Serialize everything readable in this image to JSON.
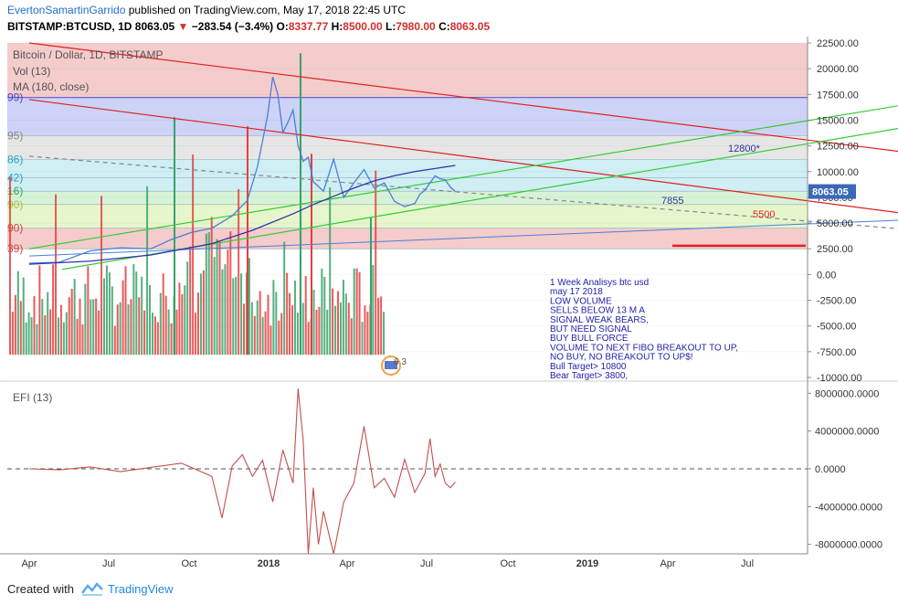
{
  "header": {
    "author": "EvertonSamartinGarrido",
    "published": " published on TradingView.com, May 17, 2018 22:45 UTC",
    "symbol": "BITSTAMP:BTCUSD, 1D",
    "price": "8063.05",
    "change": "−283.54 (−3.4%)",
    "o_label": "O:",
    "o_val": "8337.77",
    "h_label": "H:",
    "h_val": "8500.00",
    "l_label": "L:",
    "l_val": "7980.00",
    "c_label": "C:",
    "c_val": "8063.05"
  },
  "legend": {
    "title": "Bitcoin / Dollar, 1D, BITSTAMP",
    "vol": "Vol (13)",
    "ma": "MA (180, close)",
    "efi": "EFI (13)"
  },
  "fib_labels": [
    "99)",
    "95)",
    "86)",
    "42)",
    "16)",
    "90)",
    "90)",
    "39)"
  ],
  "annotations": {
    "l12800": "12800*",
    "l7855": "7855",
    "l5500": "5500",
    "counter": "6 3",
    "note": [
      "1 Week Analisys btc usd",
      "may 17 2018",
      "LOW VOLUME",
      "SELLS BELOW 13 M A",
      "SIGNAL WEAK BEARS,",
      "BUT NEED SIGNAL",
      " BUY BULL FORCE",
      "VOLUME TO NEXT FIBO BREAKOUT TO UP,",
      " NO BUY,  NO BREAKOUT TO UP$!",
      "Bull Target> 10800",
      " Bear Target> 3800,"
    ]
  },
  "price_badge": "8063.05",
  "colors": {
    "band_red": "#f4cccc",
    "band_blue": "#cdd3f7",
    "band_grey": "#e6e6e6",
    "band_cyan": "#cfeff5",
    "band_green": "#d7f3d7",
    "band_lgreen": "#e6f6cc",
    "price_line": "#4a7fd6",
    "ma_line": "#3333aa",
    "vol_up": "#38a169",
    "vol_down": "#e53e3e",
    "efi_line": "#c0504d",
    "trend_red": "#e02020",
    "trend_green": "#33cc33"
  },
  "chart_data": {
    "type": "line",
    "title": "Bitcoin / Dollar, 1D, BITSTAMP",
    "price_axis": {
      "ticks": [
        "22500.00",
        "20000.00",
        "17500.00",
        "15000.00",
        "12500.00",
        "10000.00",
        "7500.00",
        "5000.00",
        "2500.00",
        "0.00",
        "-2500.00",
        "-5000.00",
        "-7500.00",
        "-10000.00"
      ],
      "ylim": [
        -10000,
        22500
      ]
    },
    "efi_axis": {
      "ticks": [
        "8000000.0000",
        "4000000.0000",
        "0.0000",
        "-4000000.0000",
        "-8000000.0000"
      ],
      "ylim": [
        -9000000,
        9000000
      ]
    },
    "x_ticks": [
      "Apr",
      "Jul",
      "Oct",
      "2018",
      "Apr",
      "Jul",
      "Oct",
      "2019",
      "Apr",
      "Jul"
    ],
    "price_series": {
      "name": "BTCUSD",
      "x": [
        0,
        30,
        60,
        90,
        120,
        140,
        160,
        180,
        200,
        215,
        225,
        235,
        240,
        245,
        250,
        255,
        260,
        265,
        270,
        275,
        280,
        290,
        300,
        310,
        320,
        330,
        340,
        350,
        360,
        370,
        380,
        385,
        390,
        395,
        400,
        405,
        410,
        415,
        420
      ],
      "values": [
        1100,
        1200,
        2300,
        2600,
        2500,
        3400,
        4100,
        4500,
        5700,
        7200,
        10500,
        15500,
        19200,
        17500,
        13800,
        14800,
        16000,
        12500,
        11000,
        11400,
        9000,
        8100,
        11200,
        7500,
        8900,
        10200,
        8400,
        8900,
        7100,
        6600,
        6900,
        7800,
        8200,
        8900,
        9600,
        9300,
        9200,
        8500,
        8063
      ]
    },
    "ma_series": {
      "name": "MA (180, close)",
      "x": [
        0,
        60,
        120,
        180,
        220,
        260,
        280,
        300,
        320,
        340,
        360,
        380,
        400,
        420
      ],
      "values": [
        1000,
        1300,
        1900,
        3000,
        4300,
        5900,
        6800,
        7600,
        8400,
        9100,
        9600,
        10000,
        10300,
        10600
      ]
    },
    "efi_series": {
      "name": "EFI (13)",
      "x": [
        0,
        30,
        60,
        90,
        120,
        150,
        180,
        190,
        200,
        210,
        220,
        230,
        240,
        250,
        260,
        265,
        270,
        275,
        280,
        285,
        290,
        300,
        310,
        320,
        330,
        340,
        350,
        360,
        370,
        380,
        390,
        395,
        400,
        405,
        410,
        415,
        420
      ],
      "values": [
        0,
        -100000,
        200000,
        -300000,
        150000,
        600000,
        -800000,
        -5200000,
        300000,
        1500000,
        -800000,
        900000,
        -3500000,
        2000000,
        -1500000,
        8500000,
        3000000,
        -9000000,
        -2000000,
        -8000000,
        -4500000,
        -9000000,
        -3500000,
        -1500000,
        4500000,
        -2000000,
        -1000000,
        -3000000,
        1000000,
        -2500000,
        -500000,
        3200000,
        -800000,
        500000,
        -1500000,
        -2000000,
        -1400000
      ]
    },
    "fib_levels": [
      17200,
      13500,
      11200,
      9400,
      8100,
      6800,
      4500,
      2500
    ],
    "trendlines": [
      {
        "color": "red",
        "from": [
          0,
          22500
        ],
        "to": [
          870,
          11000
        ]
      },
      {
        "color": "red",
        "from": [
          0,
          17000
        ],
        "to": [
          870,
          5000
        ]
      },
      {
        "color": "green",
        "from": [
          0,
          2500
        ],
        "to": [
          860,
          17500
        ]
      },
      {
        "color": "green",
        "from": [
          30,
          500
        ],
        "to": [
          870,
          15500
        ]
      },
      {
        "color": "blue",
        "from": [
          0,
          1800
        ],
        "to": [
          870,
          5600
        ]
      },
      {
        "color": "grey-dashed",
        "from": [
          0,
          11500
        ],
        "to": [
          870,
          3800
        ]
      }
    ],
    "volume_bars_count": 140
  },
  "footer": {
    "created": "Created with",
    "brand": "TradingView"
  }
}
